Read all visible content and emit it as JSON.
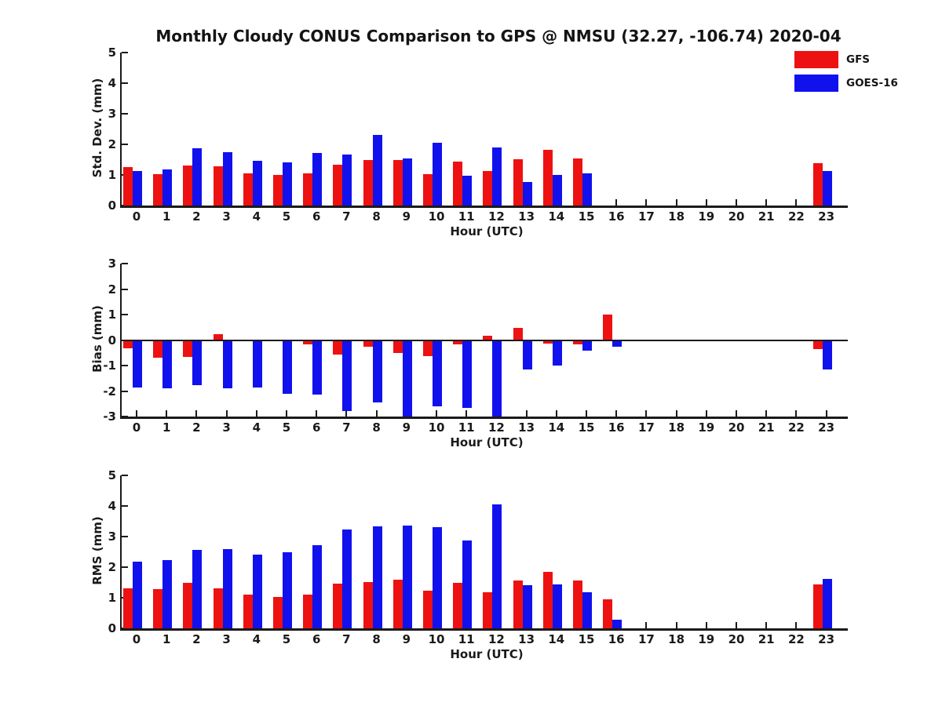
{
  "title": "Monthly Cloudy CONUS Comparison to GPS @ NMSU (32.27, -106.74) 2020-04",
  "legend": [
    {
      "label": "GFS",
      "color": "#ee1111"
    },
    {
      "label": "GOES-16",
      "color": "#1111ee"
    }
  ],
  "colors": {
    "gfs": "#ee1111",
    "goes16": "#1111ee",
    "axis": "#1a1a1a",
    "background": "#ffffff"
  },
  "chart_data": [
    {
      "type": "bar",
      "id": "stddev",
      "ylabel": "Std. Dev. (mm)",
      "xlabel": "Hour (UTC)",
      "ylim": [
        0,
        5
      ],
      "yticks": [
        0,
        1,
        2,
        3,
        4,
        5
      ],
      "grid": false,
      "legend_position": "top-right",
      "categories": [
        0,
        1,
        2,
        3,
        4,
        5,
        6,
        7,
        8,
        9,
        10,
        11,
        12,
        13,
        14,
        15,
        16,
        17,
        18,
        19,
        20,
        21,
        22,
        23
      ],
      "series": [
        {
          "name": "GFS",
          "color": "#ee1111",
          "values": [
            1.25,
            1.03,
            1.32,
            1.27,
            1.06,
            1.01,
            1.06,
            1.33,
            1.48,
            1.49,
            1.03,
            1.44,
            1.13,
            1.52,
            1.83,
            1.55,
            null,
            null,
            null,
            null,
            null,
            null,
            null,
            1.38
          ]
        },
        {
          "name": "GOES-16",
          "color": "#1111ee",
          "values": [
            1.13,
            1.17,
            1.87,
            1.75,
            1.46,
            1.42,
            1.72,
            1.67,
            2.3,
            1.53,
            2.04,
            0.98,
            1.9,
            0.78,
            0.99,
            1.06,
            null,
            null,
            null,
            null,
            null,
            null,
            null,
            1.13
          ]
        }
      ]
    },
    {
      "type": "bar",
      "id": "bias",
      "ylabel": "Bias (mm)",
      "xlabel": "Hour (UTC)",
      "ylim": [
        -3,
        3
      ],
      "yticks": [
        -3,
        -2,
        -1,
        0,
        1,
        2,
        3
      ],
      "zero_line": true,
      "grid": false,
      "categories": [
        0,
        1,
        2,
        3,
        4,
        5,
        6,
        7,
        8,
        9,
        10,
        11,
        12,
        13,
        14,
        15,
        16,
        17,
        18,
        19,
        20,
        21,
        22,
        23
      ],
      "series": [
        {
          "name": "GFS",
          "color": "#ee1111",
          "values": [
            -0.32,
            -0.7,
            -0.66,
            0.24,
            -0.05,
            -0.02,
            -0.16,
            -0.56,
            -0.26,
            -0.51,
            -0.63,
            -0.18,
            0.16,
            0.48,
            -0.13,
            -0.18,
            1.0,
            null,
            null,
            null,
            null,
            null,
            null,
            -0.35
          ]
        },
        {
          "name": "GOES-16",
          "color": "#1111ee",
          "values": [
            -1.85,
            -1.88,
            -1.77,
            -1.89,
            -1.85,
            -2.1,
            -2.15,
            -2.78,
            -2.46,
            -3.0,
            -2.6,
            -2.67,
            -3.0,
            -1.15,
            -1.0,
            -0.42,
            -0.25,
            null,
            null,
            null,
            null,
            null,
            null,
            -1.15
          ]
        }
      ]
    },
    {
      "type": "bar",
      "id": "rms",
      "ylabel": "RMS (mm)",
      "xlabel": "Hour (UTC)",
      "ylim": [
        0,
        5
      ],
      "yticks": [
        0,
        1,
        2,
        3,
        4,
        5
      ],
      "grid": false,
      "categories": [
        0,
        1,
        2,
        3,
        4,
        5,
        6,
        7,
        8,
        9,
        10,
        11,
        12,
        13,
        14,
        15,
        16,
        17,
        18,
        19,
        20,
        21,
        22,
        23
      ],
      "series": [
        {
          "name": "GFS",
          "color": "#ee1111",
          "values": [
            1.32,
            1.27,
            1.5,
            1.3,
            1.09,
            1.02,
            1.09,
            1.45,
            1.52,
            1.6,
            1.23,
            1.48,
            1.19,
            1.57,
            1.84,
            1.56,
            0.96,
            null,
            null,
            null,
            null,
            null,
            null,
            1.44
          ]
        },
        {
          "name": "GOES-16",
          "color": "#1111ee",
          "values": [
            2.19,
            2.24,
            2.57,
            2.6,
            2.4,
            2.5,
            2.73,
            3.22,
            3.34,
            3.35,
            3.3,
            2.87,
            4.04,
            1.42,
            1.44,
            1.18,
            0.27,
            null,
            null,
            null,
            null,
            null,
            null,
            1.61
          ]
        }
      ]
    }
  ]
}
